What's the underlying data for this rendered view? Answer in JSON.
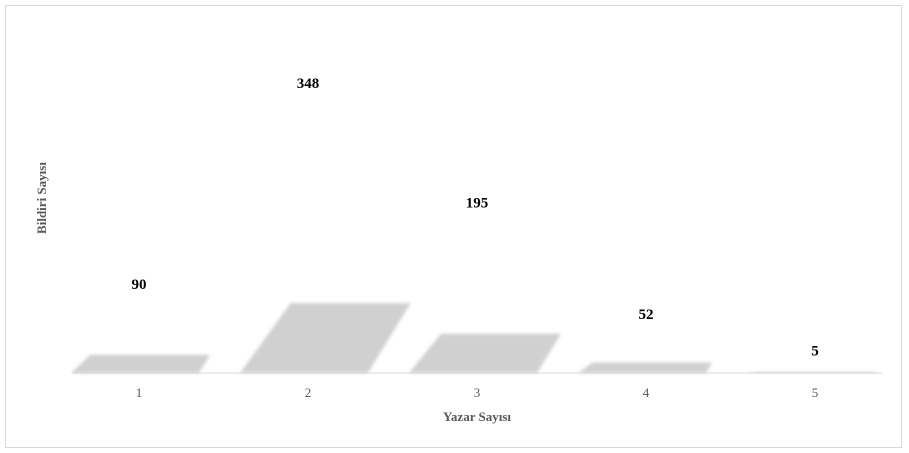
{
  "chart_data": {
    "type": "area",
    "categories": [
      "1",
      "2",
      "3",
      "4",
      "5"
    ],
    "values": [
      90,
      348,
      195,
      52,
      5
    ],
    "data_labels": [
      "90",
      "348",
      "195",
      "52",
      "5"
    ],
    "xlabel": "Yazar Sayısı",
    "ylabel": "Bildiri Sayısı",
    "grid": false,
    "legend": "none",
    "colors": {
      "fill": "#d0d0d0",
      "baseline": "#d9d9d9"
    }
  }
}
